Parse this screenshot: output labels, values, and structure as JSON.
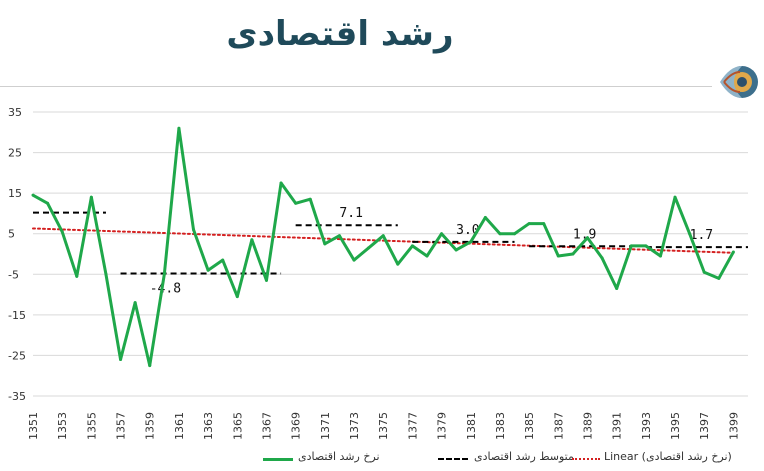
{
  "title": "رشد اقتصادی",
  "colors": {
    "title": "#1f4a5a",
    "growth_line": "#1fa84a",
    "average_line": "#000000",
    "trend_line": "#d42020",
    "grid": "#d9d9d9"
  },
  "chart_data": {
    "type": "line",
    "xlabel": "",
    "ylabel": "",
    "ylim": [
      -35,
      35
    ],
    "y_ticks": [
      35,
      25,
      15,
      5,
      -5,
      -15,
      -25,
      -35
    ],
    "x_tick_labels": [
      "1351",
      "1353",
      "1355",
      "1357",
      "1359",
      "1361",
      "1363",
      "1365",
      "1367",
      "1369",
      "1371",
      "1373",
      "1375",
      "1377",
      "1379",
      "1381",
      "1383",
      "1385",
      "1387",
      "1389",
      "1391",
      "1393",
      "1395",
      "1397",
      "1399"
    ],
    "grid": "horizontal",
    "legend_position": "bottom",
    "x": [
      1351,
      1352,
      1353,
      1354,
      1355,
      1356,
      1357,
      1358,
      1359,
      1360,
      1361,
      1362,
      1363,
      1364,
      1365,
      1366,
      1367,
      1368,
      1369,
      1370,
      1371,
      1372,
      1373,
      1374,
      1375,
      1376,
      1377,
      1378,
      1379,
      1380,
      1381,
      1382,
      1383,
      1384,
      1385,
      1386,
      1387,
      1388,
      1389,
      1390,
      1391,
      1392,
      1393,
      1394,
      1395,
      1396,
      1397,
      1398,
      1399
    ],
    "series": [
      {
        "name": "نرخ رشد اقتصادی",
        "style": "solid",
        "values": [
          14.5,
          12.5,
          5.5,
          -5.5,
          14.0,
          -5.0,
          -26.0,
          -12.0,
          -27.5,
          -5.0,
          31.0,
          6.0,
          -4.0,
          -1.5,
          -10.5,
          3.5,
          -6.5,
          17.5,
          12.5,
          13.5,
          2.5,
          4.5,
          -1.5,
          1.5,
          4.5,
          -2.5,
          2.0,
          -0.5,
          5.0,
          1.0,
          3.0,
          9.0,
          5.0,
          5.0,
          7.5,
          7.5,
          -0.5,
          0.0,
          4.0,
          -1.0,
          -8.5,
          2.0,
          2.0,
          -0.5,
          14.0,
          5.0,
          -4.5,
          -6.0,
          0.5
        ]
      },
      {
        "name": "متوسط رشد اقتصادی",
        "style": "dashed",
        "segments": [
          {
            "x_start": 1351,
            "x_end": 1356,
            "value": 10.2,
            "label": ""
          },
          {
            "x_start": 1357,
            "x_end": 1368,
            "value": -4.8,
            "label": "-4.8"
          },
          {
            "x_start": 1369,
            "x_end": 1376,
            "value": 7.1,
            "label": "7.1"
          },
          {
            "x_start": 1377,
            "x_end": 1384,
            "value": 3.0,
            "label": "3.0"
          },
          {
            "x_start": 1385,
            "x_end": 1392,
            "value": 1.9,
            "label": "1.9"
          },
          {
            "x_start": 1393,
            "x_end": 1400,
            "value": 1.7,
            "label": "1.7"
          }
        ]
      },
      {
        "name": "Linear (نرخ رشد اقتصادی)",
        "style": "dotted",
        "trend_start": 6.3,
        "trend_end": 0.3
      }
    ]
  },
  "legend": {
    "growth": "نرخ رشد اقتصادی",
    "average": "متوسط رشد اقتصادی",
    "trend": "Linear (نرخ رشد اقتصادی)"
  }
}
